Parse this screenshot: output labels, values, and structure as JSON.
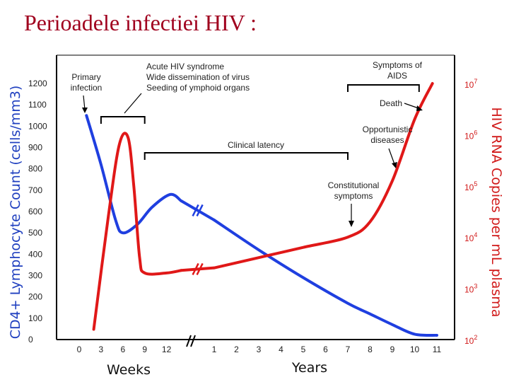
{
  "title": "Perioadele infectiei HIV :",
  "chart_data": {
    "type": "line",
    "ylabel_left": "CD4+ Lymphocyte Count (cells/mm3)",
    "ylabel_right": "HIV RNA Copies per mL plasma",
    "xlabel_weeks": "Weeks",
    "xlabel_years": "Years",
    "ylim_left": [
      0,
      1200
    ],
    "ylim_right_log10": [
      2,
      7
    ],
    "left_ticks": [
      "0",
      "100",
      "200",
      "300",
      "400",
      "500",
      "600",
      "700",
      "800",
      "900",
      "1000",
      "1100",
      "1200"
    ],
    "right_ticks": [
      {
        "base": "10",
        "exp": "2",
        "log": 2
      },
      {
        "base": "10",
        "exp": "3",
        "log": 3
      },
      {
        "base": "10",
        "exp": "4",
        "log": 4
      },
      {
        "base": "10",
        "exp": "5",
        "log": 5
      },
      {
        "base": "10",
        "exp": "6",
        "log": 6
      },
      {
        "base": "10",
        "exp": "7",
        "log": 7
      }
    ],
    "week_ticks": [
      "0",
      "3",
      "6",
      "9",
      "12"
    ],
    "year_ticks": [
      "1",
      "2",
      "3",
      "4",
      "5",
      "6",
      "7",
      "8",
      "9",
      "10",
      "11"
    ],
    "series": [
      {
        "name": "CD4",
        "color": "#1f3fe0",
        "weeks": [
          [
            1,
            1050
          ],
          [
            3,
            820
          ],
          [
            5,
            560
          ],
          [
            6,
            500
          ],
          [
            8,
            540
          ],
          [
            10,
            620
          ],
          [
            12.5,
            680
          ],
          [
            14,
            650
          ]
        ],
        "years": [
          [
            1,
            560
          ],
          [
            3,
            420
          ],
          [
            5,
            290
          ],
          [
            7,
            170
          ],
          [
            8,
            120
          ],
          [
            9,
            70
          ],
          [
            10,
            25
          ],
          [
            11,
            20
          ]
        ]
      },
      {
        "name": "HIV RNA",
        "color": "#e01818",
        "weeks": [
          [
            2,
            2.2
          ],
          [
            4,
            4.4
          ],
          [
            5.5,
            5.8
          ],
          [
            6.7,
            5.95
          ],
          [
            7.5,
            5.0
          ],
          [
            8.3,
            3.6
          ],
          [
            9,
            3.3
          ],
          [
            12,
            3.3
          ],
          [
            14,
            3.35
          ]
        ],
        "years": [
          [
            1,
            3.4
          ],
          [
            3,
            3.6
          ],
          [
            5,
            3.8
          ],
          [
            7,
            4.0
          ],
          [
            8,
            4.3
          ],
          [
            9,
            5.1
          ],
          [
            10,
            6.3
          ],
          [
            10.8,
            7.0
          ]
        ]
      }
    ],
    "brackets": [
      {
        "label": "",
        "x0": "w3",
        "x1": "w9"
      },
      {
        "label": "Clinical latency",
        "x0": "w9",
        "x1": "y7"
      },
      {
        "label": "Symptoms of AIDS",
        "x0": "y7",
        "x1": "y10.2"
      }
    ],
    "annotations": {
      "primary": [
        "Primary",
        "infection"
      ],
      "acute": [
        "Acute HIV syndrome",
        "Wide dissemination of virus",
        "Seeding of ymphoid organs"
      ],
      "latency": "Clinical latency",
      "aids": [
        "Symptoms of",
        "AIDS"
      ],
      "death": "Death",
      "opportunistic": [
        "Opportunistic",
        "diseases"
      ],
      "constitutional": [
        "Constitutional",
        "symptoms"
      ]
    }
  }
}
